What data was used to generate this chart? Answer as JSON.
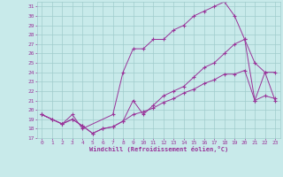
{
  "xlabel": "Windchill (Refroidissement éolien,°C)",
  "bg_color": "#c8eaea",
  "grid_color": "#a0cccc",
  "line_color": "#993399",
  "xlim": [
    -0.5,
    23.5
  ],
  "ylim": [
    17,
    31.5
  ],
  "yticks": [
    17,
    18,
    19,
    20,
    21,
    22,
    23,
    24,
    25,
    26,
    27,
    28,
    29,
    30,
    31
  ],
  "xticks": [
    0,
    1,
    2,
    3,
    4,
    5,
    6,
    7,
    8,
    9,
    10,
    11,
    12,
    13,
    14,
    15,
    16,
    17,
    18,
    19,
    20,
    21,
    22,
    23
  ],
  "line1_x": [
    0,
    1,
    2,
    3,
    4,
    5,
    6,
    7,
    8,
    9,
    10,
    11,
    12,
    13,
    14,
    15,
    16,
    17,
    18,
    19,
    20,
    21,
    22,
    23
  ],
  "line1_y": [
    19.5,
    19.0,
    18.5,
    19.0,
    18.3,
    17.5,
    18.0,
    18.2,
    18.8,
    21.0,
    19.5,
    20.5,
    21.5,
    22.0,
    22.5,
    23.5,
    24.5,
    25.0,
    26.0,
    27.0,
    27.5,
    21.0,
    24.0,
    21.0
  ],
  "line2_x": [
    0,
    2,
    3,
    4,
    7,
    8,
    9,
    10,
    11,
    12,
    13,
    14,
    15,
    16,
    17,
    18,
    19,
    20,
    21,
    22,
    23
  ],
  "line2_y": [
    19.5,
    18.5,
    19.5,
    18.0,
    19.5,
    24.0,
    26.5,
    26.5,
    27.5,
    27.5,
    28.5,
    29.0,
    30.0,
    30.5,
    31.0,
    31.5,
    30.0,
    27.5,
    25.0,
    24.0,
    24.0
  ],
  "line3_x": [
    0,
    1,
    2,
    3,
    4,
    5,
    6,
    7,
    8,
    9,
    10,
    11,
    12,
    13,
    14,
    15,
    16,
    17,
    18,
    19,
    20,
    21,
    22,
    23
  ],
  "line3_y": [
    19.5,
    19.0,
    18.5,
    19.0,
    18.3,
    17.5,
    18.0,
    18.2,
    18.8,
    19.5,
    19.8,
    20.2,
    20.8,
    21.2,
    21.8,
    22.2,
    22.8,
    23.2,
    23.8,
    23.8,
    24.2,
    21.0,
    21.5,
    21.2
  ]
}
